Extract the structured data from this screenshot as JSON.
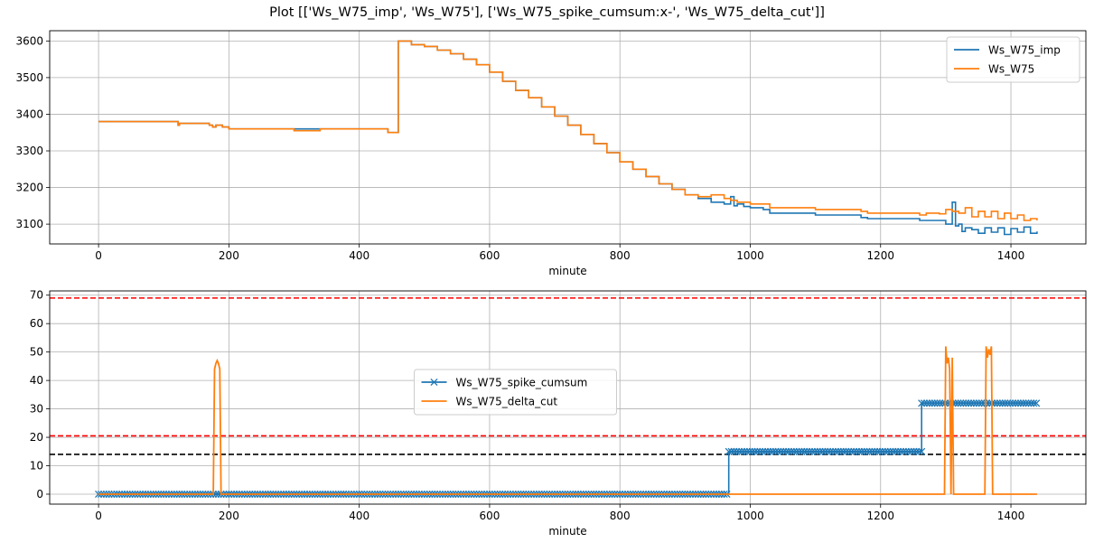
{
  "figure_title": "Plot [['Ws_W75_imp', 'Ws_W75'], ['Ws_W75_spike_cumsum:x-', 'Ws_W75_delta_cut']]",
  "colors": {
    "blue": "#1f77b4",
    "orange": "#ff7f0e",
    "red": "#ff0000",
    "black": "#000000",
    "grid": "#b0b0b0"
  },
  "chart_data": [
    {
      "type": "line",
      "xlabel": "minute",
      "ylabel": "",
      "xlim": [
        -75,
        1515
      ],
      "ylim": [
        3046,
        3628
      ],
      "xticks": [
        0,
        200,
        400,
        600,
        800,
        1000,
        1200,
        1400
      ],
      "yticks": [
        3100,
        3200,
        3300,
        3400,
        3500,
        3600
      ],
      "grid": true,
      "legend_position": "upper right",
      "series": [
        {
          "name": "Ws_W75_imp",
          "color": "#1f77b4",
          "x": [
            0,
            120,
            122,
            124,
            170,
            175,
            180,
            190,
            200,
            440,
            444,
            448,
            452,
            456,
            460,
            470,
            480,
            500,
            520,
            540,
            560,
            580,
            600,
            620,
            640,
            660,
            680,
            700,
            720,
            740,
            760,
            780,
            800,
            820,
            840,
            860,
            880,
            900,
            920,
            940,
            960,
            970,
            975,
            980,
            990,
            1000,
            1020,
            1030,
            1100,
            1170,
            1180,
            1260,
            1300,
            1310,
            1315,
            1320,
            1325,
            1330,
            1340,
            1350,
            1360,
            1370,
            1380,
            1390,
            1400,
            1410,
            1420,
            1430,
            1440
          ],
          "values": [
            3380,
            3380,
            3370,
            3375,
            3370,
            3365,
            3370,
            3365,
            3360,
            3360,
            3350,
            3350,
            3350,
            3350,
            3600,
            3600,
            3590,
            3585,
            3575,
            3565,
            3550,
            3535,
            3515,
            3490,
            3465,
            3445,
            3420,
            3395,
            3370,
            3345,
            3320,
            3295,
            3270,
            3250,
            3230,
            3210,
            3195,
            3180,
            3170,
            3160,
            3155,
            3175,
            3150,
            3155,
            3148,
            3145,
            3140,
            3130,
            3125,
            3118,
            3115,
            3110,
            3100,
            3160,
            3095,
            3100,
            3080,
            3090,
            3085,
            3075,
            3090,
            3078,
            3090,
            3072,
            3088,
            3078,
            3092,
            3075,
            3080
          ]
        },
        {
          "name": "Ws_W75",
          "color": "#ff7f0e",
          "x": [
            0,
            120,
            122,
            124,
            170,
            175,
            180,
            190,
            200,
            240,
            300,
            340,
            440,
            444,
            448,
            452,
            456,
            460,
            470,
            480,
            500,
            520,
            540,
            560,
            580,
            600,
            620,
            640,
            660,
            680,
            700,
            720,
            740,
            760,
            780,
            800,
            820,
            840,
            860,
            880,
            900,
            920,
            940,
            960,
            970,
            980,
            1000,
            1030,
            1100,
            1170,
            1180,
            1260,
            1270,
            1290,
            1300,
            1310,
            1320,
            1330,
            1340,
            1350,
            1360,
            1370,
            1380,
            1390,
            1400,
            1410,
            1420,
            1430,
            1440
          ],
          "values": [
            3380,
            3380,
            3370,
            3375,
            3370,
            3365,
            3370,
            3365,
            3360,
            3360,
            3355,
            3360,
            3360,
            3350,
            3350,
            3350,
            3350,
            3600,
            3600,
            3590,
            3585,
            3575,
            3565,
            3550,
            3535,
            3515,
            3490,
            3465,
            3445,
            3420,
            3395,
            3370,
            3345,
            3320,
            3295,
            3270,
            3250,
            3230,
            3210,
            3195,
            3180,
            3175,
            3180,
            3170,
            3165,
            3160,
            3155,
            3145,
            3140,
            3135,
            3130,
            3125,
            3130,
            3128,
            3140,
            3135,
            3130,
            3145,
            3120,
            3135,
            3120,
            3135,
            3115,
            3130,
            3115,
            3125,
            3110,
            3115,
            3110
          ]
        }
      ]
    },
    {
      "type": "line",
      "xlabel": "minute",
      "ylabel": "",
      "xlim": [
        -75,
        1515
      ],
      "ylim": [
        -3.5,
        71.5
      ],
      "xticks": [
        0,
        200,
        400,
        600,
        800,
        1000,
        1200,
        1400
      ],
      "yticks": [
        0,
        10,
        20,
        30,
        40,
        50,
        60,
        70
      ],
      "grid": true,
      "legend_position": "center",
      "hlines": [
        {
          "y": 69,
          "color": "#ff0000",
          "style": "dashed"
        },
        {
          "y": 20.5,
          "color": "#ff0000",
          "style": "dashed"
        },
        {
          "y": 14,
          "color": "#000000",
          "style": "dashed"
        }
      ],
      "series": [
        {
          "name": "Ws_W75_spike_cumsum",
          "color": "#1f77b4",
          "marker": "x",
          "steps": [
            {
              "x_start": 0,
              "x_end": 967,
              "y": 0
            },
            {
              "x_start": 967,
              "x_end": 1263,
              "y": 15
            },
            {
              "x_start": 1263,
              "x_end": 1440,
              "y": 32
            }
          ],
          "marker_spacing_minutes": 4
        },
        {
          "name": "Ws_W75_delta_cut",
          "color": "#ff7f0e",
          "x": [
            0,
            176,
            178,
            180,
            182,
            184,
            186,
            188,
            190,
            968,
            1298,
            1300,
            1302,
            1304,
            1306,
            1308,
            1310,
            1312,
            1360,
            1362,
            1364,
            1366,
            1368,
            1370,
            1372,
            1440
          ],
          "values": [
            0,
            0,
            44,
            46,
            47,
            46,
            44,
            0,
            0,
            0,
            0,
            52,
            46,
            48,
            44,
            0,
            48,
            0,
            0,
            52,
            48,
            51,
            49,
            52,
            0,
            0
          ]
        }
      ]
    }
  ]
}
